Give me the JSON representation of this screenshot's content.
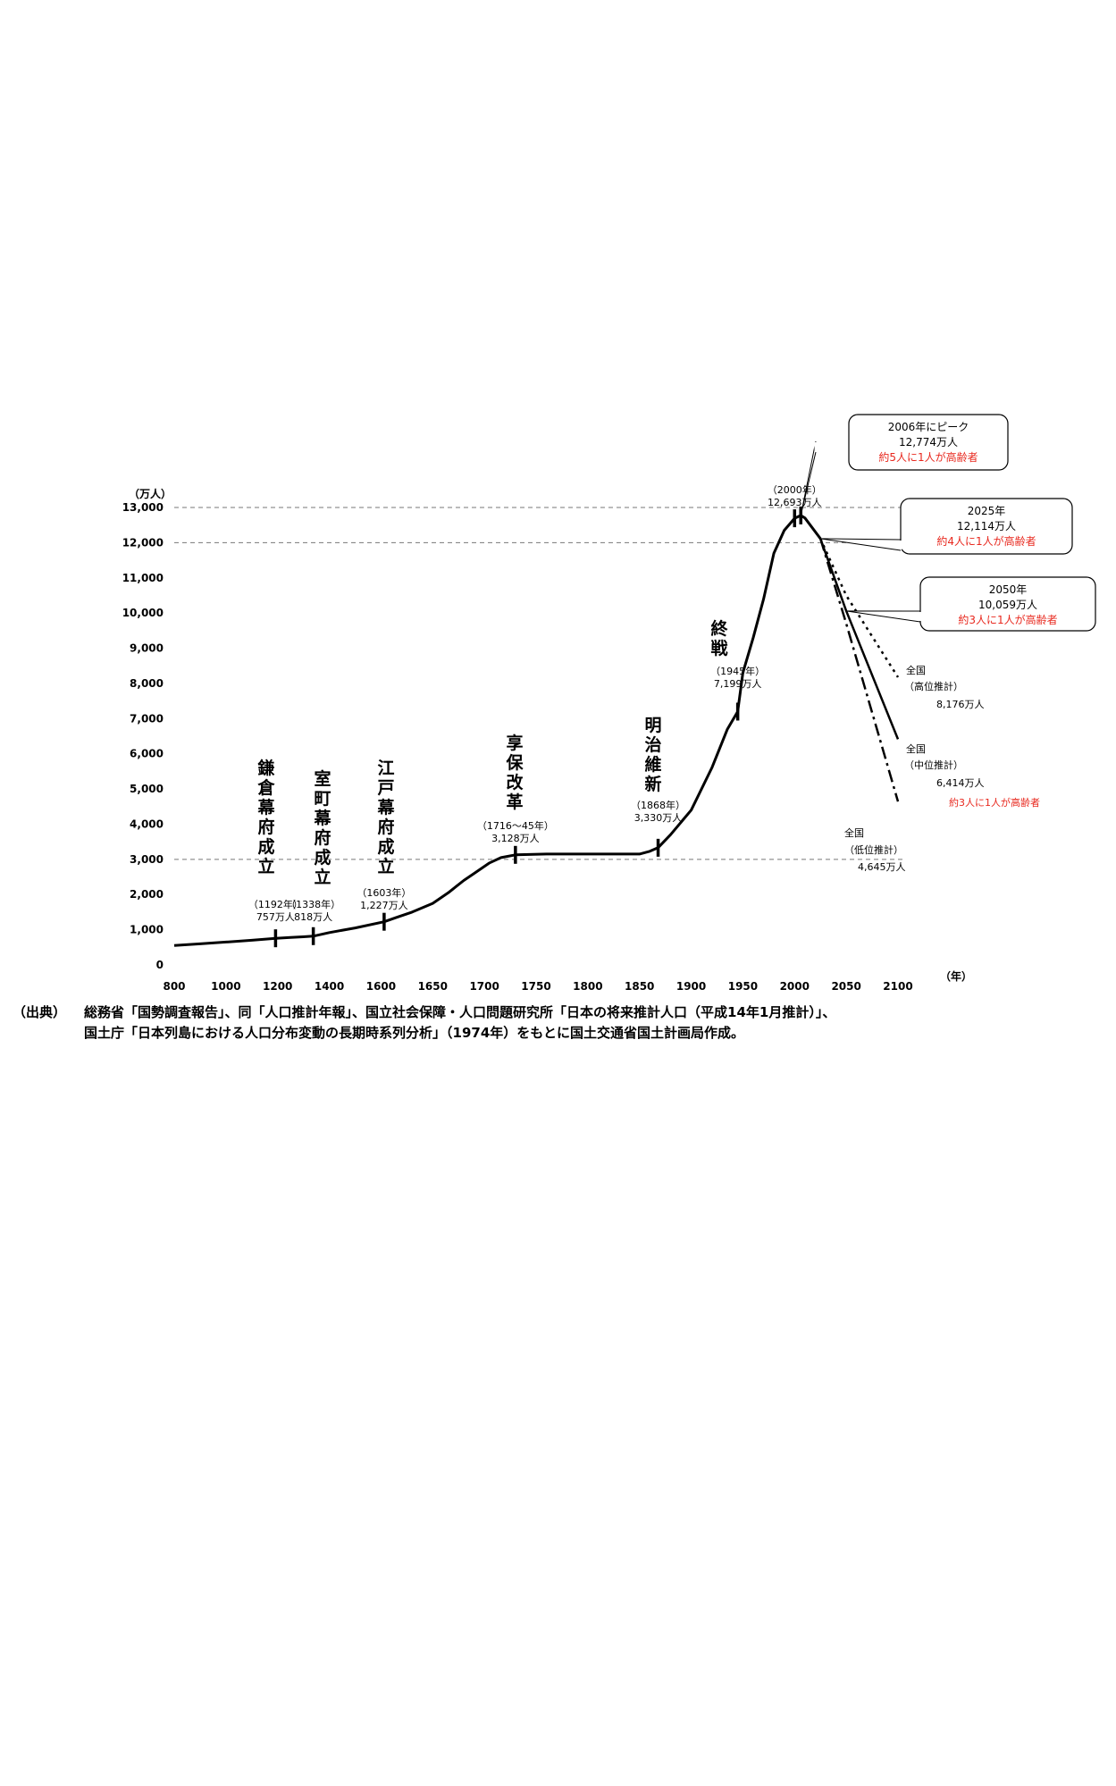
{
  "chart_data": {
    "type": "line",
    "ylabel": "（万人）",
    "xlabel": "（年）",
    "ylim": [
      0,
      13000
    ],
    "y_ticks": [
      "13,000",
      "12,000",
      "11,000",
      "10,000",
      "9,000",
      "8,000",
      "7,000",
      "6,000",
      "5,000",
      "4,000",
      "3,000",
      "2,000",
      "1,000",
      "0"
    ],
    "y_tick_values": [
      13000,
      12000,
      11000,
      10000,
      9000,
      8000,
      7000,
      6000,
      5000,
      4000,
      3000,
      2000,
      1000,
      0
    ],
    "x_ticks": [
      "800",
      "1000",
      "1200",
      "1400",
      "1600",
      "1650",
      "1700",
      "1750",
      "1800",
      "1850",
      "1900",
      "1950",
      "2000",
      "2050",
      "2100"
    ],
    "reference_lines": [
      13000,
      12000,
      3000
    ],
    "series": [
      {
        "values": [
          {
            "x": 800,
            "y": 550
          },
          {
            "x": 900,
            "y": 600
          },
          {
            "x": 1000,
            "y": 650
          },
          {
            "x": 1100,
            "y": 700
          },
          {
            "x": 1192,
            "y": 757
          },
          {
            "x": 1250,
            "y": 780
          },
          {
            "x": 1300,
            "y": 800
          },
          {
            "x": 1338,
            "y": 818
          },
          {
            "x": 1400,
            "y": 920
          },
          {
            "x": 1500,
            "y": 1050
          },
          {
            "x": 1603,
            "y": 1227
          },
          {
            "x": 1615,
            "y": 1350
          },
          {
            "x": 1630,
            "y": 1500
          },
          {
            "x": 1650,
            "y": 1750
          },
          {
            "x": 1665,
            "y": 2050
          },
          {
            "x": 1680,
            "y": 2400
          },
          {
            "x": 1690,
            "y": 2600
          },
          {
            "x": 1705,
            "y": 2900
          },
          {
            "x": 1716,
            "y": 3050
          },
          {
            "x": 1730,
            "y": 3128
          },
          {
            "x": 1760,
            "y": 3150
          },
          {
            "x": 1800,
            "y": 3150
          },
          {
            "x": 1830,
            "y": 3150
          },
          {
            "x": 1850,
            "y": 3150
          },
          {
            "x": 1860,
            "y": 3230
          },
          {
            "x": 1868,
            "y": 3330
          },
          {
            "x": 1880,
            "y": 3700
          },
          {
            "x": 1900,
            "y": 4400
          },
          {
            "x": 1920,
            "y": 5600
          },
          {
            "x": 1935,
            "y": 6700
          },
          {
            "x": 1945,
            "y": 7199
          },
          {
            "x": 1950,
            "y": 8300
          },
          {
            "x": 1960,
            "y": 9300
          },
          {
            "x": 1970,
            "y": 10400
          },
          {
            "x": 1980,
            "y": 11700
          },
          {
            "x": 1990,
            "y": 12350
          },
          {
            "x": 2000,
            "y": 12693
          },
          {
            "x": 2006,
            "y": 12774
          },
          {
            "x": 2010,
            "y": 12700
          },
          {
            "x": 2025,
            "y": 12114
          }
        ]
      },
      {
        "name": "全国（中位推計）",
        "style": "solid",
        "values": [
          {
            "x": 2025,
            "y": 12114
          },
          {
            "x": 2050,
            "y": 10059
          },
          {
            "x": 2100,
            "y": 6414
          }
        ]
      },
      {
        "name": "全国（高位推計）",
        "style": "dotted",
        "values": [
          {
            "x": 2025,
            "y": 12114
          },
          {
            "x": 2050,
            "y": 10500
          },
          {
            "x": 2100,
            "y": 8176
          }
        ]
      },
      {
        "name": "全国（低位推計）",
        "style": "dashdot",
        "values": [
          {
            "x": 2025,
            "y": 12114
          },
          {
            "x": 2050,
            "y": 9700
          },
          {
            "x": 2100,
            "y": 4645
          }
        ]
      }
    ],
    "events": [
      {
        "label": "鎌倉幕府成立",
        "year_label": "（1192年）",
        "value_label": "757万人",
        "x": 1192,
        "y": 757
      },
      {
        "label": "室町幕府成立",
        "year_label": "（1338年）",
        "value_label": "818万人",
        "x": 1338,
        "y": 818
      },
      {
        "label": "江戸幕府成立",
        "year_label": "（1603年）",
        "value_label": "1,227万人",
        "x": 1603,
        "y": 1227
      },
      {
        "label": "享保改革",
        "year_label": "（1716～45年）",
        "value_label": "3,128万人",
        "x": 1730,
        "y": 3128
      },
      {
        "label": "明治維新",
        "year_label": "（1868年）",
        "value_label": "3,330万人",
        "x": 1868,
        "y": 3330
      },
      {
        "label": "終戦",
        "year_label": "（1945年）",
        "value_label": "7,199万人",
        "x": 1945,
        "y": 7199
      },
      {
        "label": "",
        "year_label": "（2000年）",
        "value_label": "12,693万人",
        "x": 2000,
        "y": 12693
      }
    ],
    "callouts": [
      {
        "line1": "2006年にピーク",
        "line2": "12,774万人",
        "line3": "約5人に1人が高齢者",
        "x": 2006,
        "y": 12774
      },
      {
        "line1": "2025年",
        "line2": "12,114万人",
        "line3": "約4人に1人が高齢者",
        "x": 2025,
        "y": 12114
      },
      {
        "line1": "2050年",
        "line2": "10,059万人",
        "line3": "約3人に1人が高齢者",
        "x": 2050,
        "y": 10059
      }
    ],
    "end_labels": {
      "high": [
        "全国",
        "（高位推計）",
        "8,176万人"
      ],
      "mid": [
        "全国",
        "（中位推計）",
        "6,414万人",
        "約3人に1人が高齢者"
      ],
      "low": [
        "全国",
        "（低位推計）",
        "4,645万人"
      ]
    },
    "colors": {
      "line": "#000000",
      "accent": "#e8281e",
      "grid": "#777777"
    }
  },
  "source": {
    "label": "（出典）",
    "line1": "総務省「国勢調査報告」、同「人口推計年報」、国立社会保障・人口問題研究所「日本の将来推計人口（平成14年1月推計）」、",
    "line2": "国土庁「日本列島における人口分布変動の長期時系列分析」（1974年）をもとに国土交通省国土計画局作成。"
  }
}
